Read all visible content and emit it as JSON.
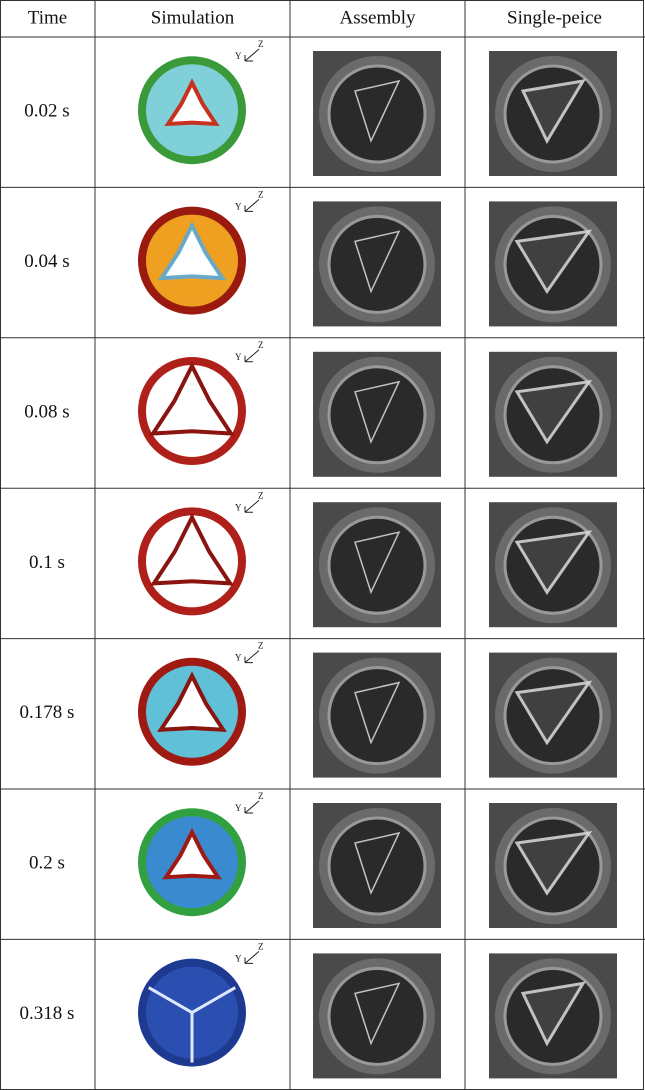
{
  "table": {
    "header": [
      "Time",
      "Simulation",
      "Assembly",
      "Single-peice"
    ],
    "axis_labels": [
      "Y",
      "Z"
    ],
    "rows": [
      "0.02 s",
      "0.04 s",
      "0.08 s",
      "0.1 s",
      "0.178 s",
      "0.2 s",
      "0.318 s"
    ]
  }
}
